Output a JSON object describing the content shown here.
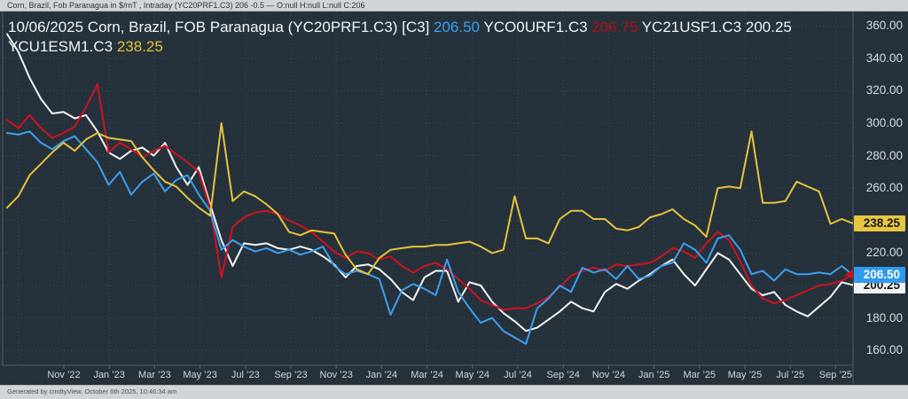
{
  "top_bar": {
    "text": "Corn, Brazil, Fob Paranagua in $/mT , Intraday (YC20PRF1.C3) 206 -0.5 — O:null H:null L:null C:206"
  },
  "footer": {
    "text": "Generated by cmdtyView, October 6th 2025, 10:46:34 am"
  },
  "title": {
    "line1": [
      {
        "text": "10/06/2025 Corn, Brazil, FOB Paranagua (YC20PRF1.C3) [C3] ",
        "color": "white"
      },
      {
        "text": "206.50",
        "color": "blue"
      },
      {
        "text": " YCO0URF1.C3 ",
        "color": "white"
      },
      {
        "text": "206.75",
        "color": "red"
      },
      {
        "text": " YC21USF1.C3 200.25",
        "color": "white"
      }
    ],
    "line2": [
      {
        "text": "YCU1ESM1.C3 ",
        "color": "white"
      },
      {
        "text": "238.25",
        "color": "yellow"
      }
    ]
  },
  "chart_data": {
    "type": "line",
    "title": "Corn, Brazil, FOB Paranagua ($/mT)",
    "as_of_date": "10/06/2025",
    "grid": true,
    "legend_position": "top-left-overlay",
    "x_range": [
      "Aug 2022",
      "Oct 2025"
    ],
    "sample_interval": "semi-monthly",
    "points_per_series": 76,
    "ylim": [
      151,
      369
    ],
    "y_axis_labels": [
      "360.00",
      "340.00",
      "320.00",
      "300.00",
      "280.00",
      "260.00",
      "220.00",
      "180.00",
      "160.00"
    ],
    "y_gridline_values": [
      360,
      340,
      320,
      300,
      280,
      260,
      240,
      220,
      200,
      180,
      160
    ],
    "x_tick_labels": [
      "Nov ’22",
      "Jan ’23",
      "Mar ’23",
      "May ’23",
      "Jul ’23",
      "Sep ’23",
      "Nov ’23",
      "Jan ’24",
      "Mar ’24",
      "May ’24",
      "Jul ’24",
      "Sep ’24",
      "Nov ’24",
      "Jan ’25",
      "Mar ’25",
      "May ’25",
      "Jul ’25",
      "Sep ’25"
    ],
    "series": [
      {
        "name": "YC20PRF1.C3",
        "color": "#3d9ff0",
        "z": 3,
        "last_value": 206.5,
        "values": [
          294,
          293,
          295,
          288,
          284,
          289,
          292,
          284,
          276,
          262,
          270,
          256,
          264,
          269,
          258,
          265,
          268,
          256,
          246,
          222,
          228,
          224,
          221,
          223,
          220,
          222,
          219,
          221,
          224,
          212,
          207,
          209,
          207,
          204,
          182,
          197,
          201,
          198,
          194,
          216,
          196,
          186,
          177,
          180,
          172,
          168,
          164,
          186,
          192,
          200,
          196,
          211,
          208,
          210,
          204,
          212,
          204,
          206,
          212,
          214,
          226,
          222,
          214,
          229,
          231,
          222,
          207,
          209,
          203,
          210,
          207,
          207,
          208,
          207,
          212,
          206.5
        ]
      },
      {
        "name": "YCO0URF1.C3",
        "color": "#d01220",
        "z": 2,
        "last_value": 206.75,
        "values": [
          302,
          297,
          305,
          297,
          291,
          294,
          298,
          310,
          324,
          282,
          288,
          284,
          279,
          283,
          286,
          281,
          276,
          270,
          248,
          205,
          236,
          242,
          245,
          246,
          244,
          240,
          237,
          233,
          227,
          221,
          217,
          221,
          220,
          216,
          218,
          212,
          208,
          212,
          214,
          210,
          204,
          198,
          191,
          188,
          185,
          186,
          186,
          189,
          193,
          199,
          206,
          209,
          211,
          209,
          213,
          212,
          213,
          214,
          218,
          223,
          221,
          217,
          226,
          233,
          228,
          215,
          200,
          192,
          189,
          191,
          194,
          197,
          200,
          201,
          203,
          206.75
        ]
      },
      {
        "name": "YC21USF1.C3",
        "color": "#f4f6f6",
        "z": 1,
        "last_value": 200.25,
        "values": [
          355,
          344,
          328,
          315,
          306,
          307,
          303,
          305,
          295,
          282,
          278,
          283,
          285,
          280,
          288,
          273,
          262,
          273,
          250,
          228,
          212,
          226,
          225,
          226,
          223,
          222,
          224,
          222,
          218,
          213,
          205,
          212,
          213,
          210,
          204,
          196,
          191,
          205,
          209,
          209,
          190,
          202,
          200,
          190,
          183,
          178,
          172,
          174,
          179,
          184,
          190,
          186,
          184,
          196,
          201,
          198,
          203,
          207,
          212,
          216,
          207,
          200,
          210,
          220,
          216,
          207,
          198,
          194,
          196,
          188,
          184,
          181,
          187,
          193,
          202,
          200.25
        ]
      },
      {
        "name": "YCU1ESM1.C3",
        "color": "#e5c33d",
        "z": 4,
        "last_value": 238.25,
        "values": [
          248,
          255,
          268,
          275,
          282,
          288,
          283,
          290,
          294,
          291,
          290,
          289,
          279,
          271,
          264,
          261,
          254,
          248,
          243,
          300,
          252,
          258,
          255,
          250,
          244,
          233,
          231,
          234,
          233,
          232,
          219,
          210,
          207,
          217,
          222,
          223,
          224,
          224,
          225,
          225,
          226,
          227,
          224,
          220,
          222,
          255,
          229,
          229,
          226,
          241,
          246,
          246,
          241,
          241,
          235,
          234,
          236,
          242,
          244,
          247,
          241,
          237,
          230,
          260,
          261,
          260,
          295,
          251,
          251,
          252,
          264,
          261,
          258,
          238,
          241,
          238.25
        ]
      }
    ],
    "price_badges": [
      {
        "label": "238.25",
        "value": 238.25,
        "series": "YCU1ESM1.C3",
        "bg": "#e8c63f",
        "fg": "#15191c"
      },
      {
        "label": "200.25",
        "value": 200.25,
        "series": "YC21USF1.C3",
        "bg": "#f2f4f4",
        "fg": "#15191c"
      },
      {
        "label": "206.50",
        "value": 206.5,
        "series": "YC20PRF1.C3",
        "bg": "#2e9af0",
        "fg": "#ffffff"
      }
    ],
    "red_marker": {
      "value": 206.75,
      "color": "#d01220"
    }
  }
}
